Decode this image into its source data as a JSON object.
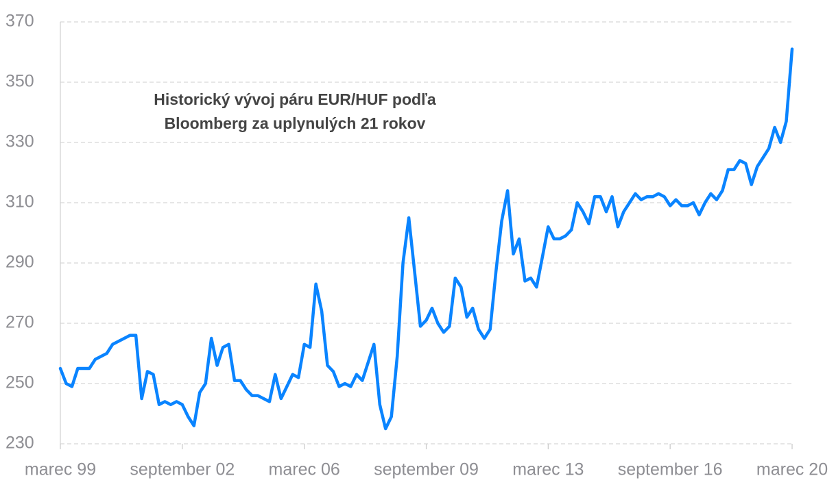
{
  "chart_data": {
    "type": "line",
    "title": [
      "Historický vývoj páru EUR/HUF podľa",
      "Bloomberg za uplynulých 21 rokov"
    ],
    "categories": [
      "marec 99",
      null,
      null,
      null,
      null,
      null,
      null,
      null,
      null,
      null,
      null,
      null,
      null,
      null,
      null,
      null,
      null,
      null,
      null,
      null,
      null,
      "september 02",
      null,
      null,
      null,
      null,
      null,
      null,
      null,
      null,
      null,
      null,
      null,
      null,
      null,
      null,
      null,
      null,
      null,
      null,
      null,
      null,
      "marec 06",
      null,
      null,
      null,
      null,
      null,
      null,
      null,
      null,
      null,
      null,
      null,
      null,
      null,
      null,
      null,
      null,
      null,
      null,
      null,
      null,
      "september 09",
      null,
      null,
      null,
      null,
      null,
      null,
      null,
      null,
      null,
      null,
      null,
      null,
      null,
      null,
      null,
      null,
      null,
      null,
      null,
      null,
      "marec 13",
      null,
      null,
      null,
      null,
      null,
      null,
      null,
      null,
      null,
      null,
      null,
      null,
      null,
      null,
      null,
      null,
      null,
      null,
      null,
      null,
      "september 16",
      null,
      null,
      null,
      null,
      null,
      null,
      null,
      null,
      null,
      null,
      null,
      null,
      null,
      null,
      null,
      null,
      null,
      null,
      null,
      null,
      "marec 20"
    ],
    "series": [
      {
        "color": "#0a84ff",
        "values": [
          255,
          250,
          249,
          255,
          255,
          255,
          258,
          259,
          260,
          263,
          264,
          265,
          266,
          266,
          245,
          254,
          253,
          243,
          244,
          243,
          244,
          243,
          239,
          236,
          247,
          250,
          265,
          256,
          262,
          263,
          251,
          251,
          248,
          246,
          246,
          245,
          244,
          253,
          245,
          249,
          253,
          252,
          263,
          262,
          283,
          274,
          256,
          254,
          249,
          250,
          249,
          253,
          251,
          257,
          263,
          243,
          235,
          239,
          259,
          290,
          305,
          287,
          269,
          271,
          275,
          270,
          267,
          269,
          285,
          282,
          272,
          275,
          268,
          265,
          268,
          287,
          304,
          314,
          293,
          298,
          284,
          285,
          282,
          292,
          302,
          298,
          298,
          299,
          301,
          310,
          307,
          303,
          312,
          312,
          307,
          312,
          302,
          307,
          310,
          313,
          311,
          312,
          312,
          313,
          312,
          309,
          311,
          309,
          309,
          310,
          306,
          310,
          313,
          311,
          314,
          321,
          321,
          324,
          323,
          316,
          322,
          325,
          328,
          335,
          330,
          337,
          361
        ]
      }
    ],
    "ylim": [
      230,
      370
    ],
    "yticks": [
      230,
      250,
      270,
      290,
      310,
      330,
      350,
      370
    ],
    "grid": true
  }
}
